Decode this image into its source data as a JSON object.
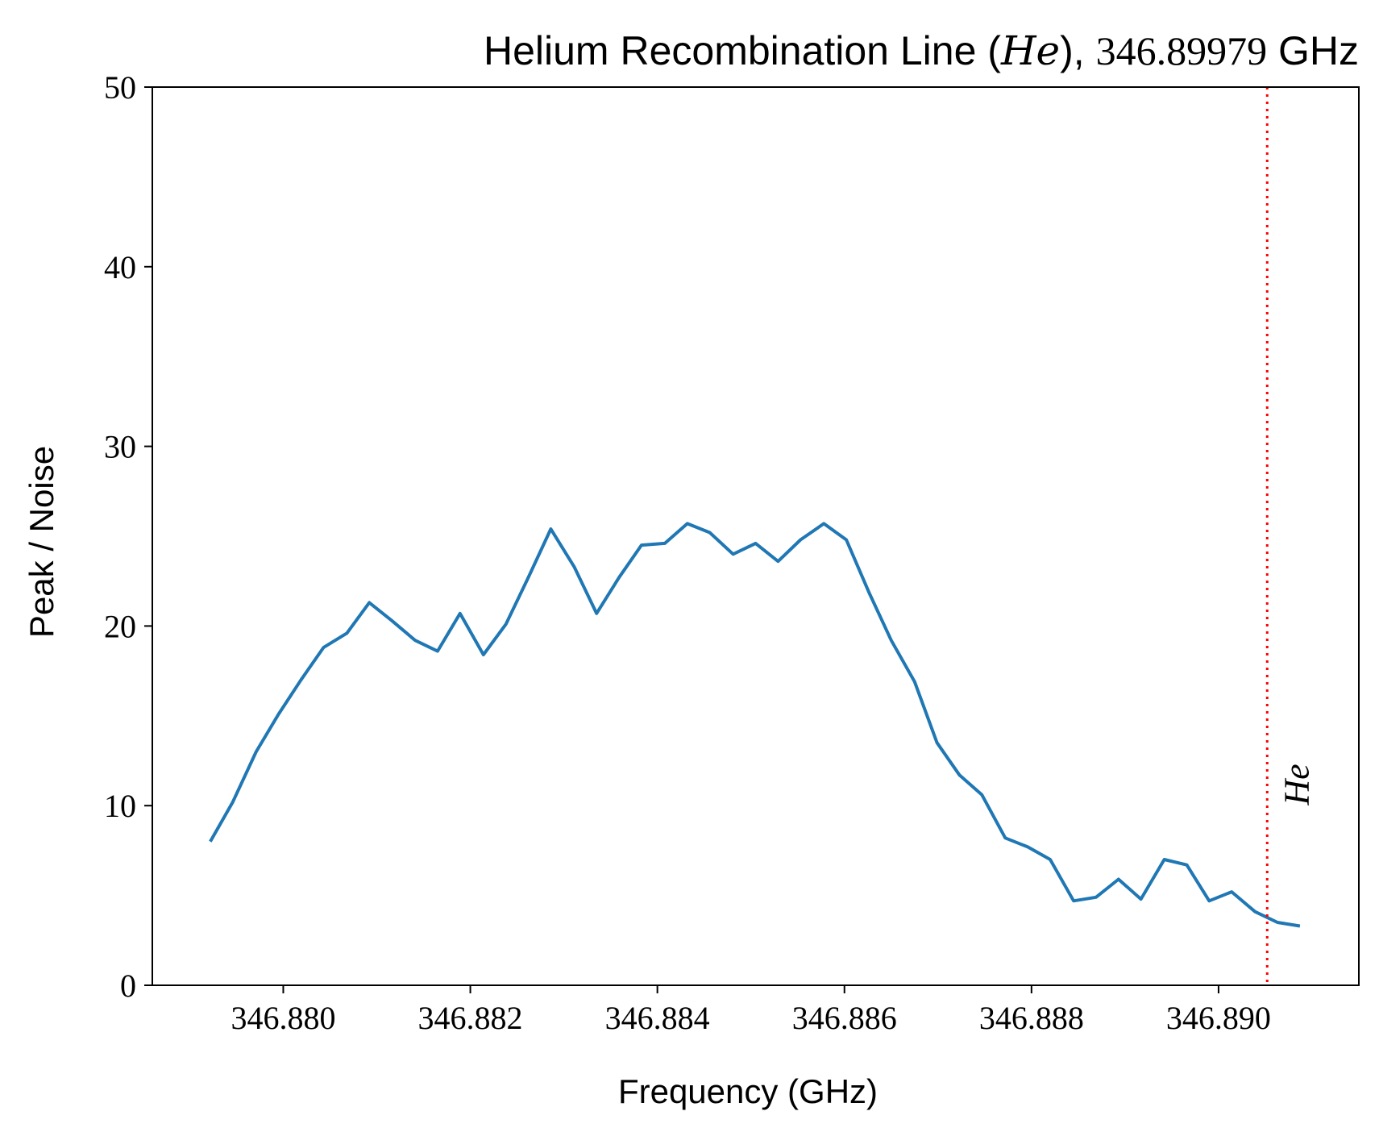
{
  "chart_data": {
    "type": "line",
    "title_parts": {
      "prefix": "Helium Recombination Line (",
      "symbol": "He",
      "middle": "), ",
      "frequency": "346.89979",
      "suffix": " GHz"
    },
    "xlabel": "Frequency (GHz)",
    "ylabel": "Peak / Noise",
    "xlim": [
      346.8786,
      346.8915
    ],
    "ylim": [
      0,
      50
    ],
    "xticks": [
      346.88,
      346.882,
      346.884,
      346.886,
      346.888,
      346.89
    ],
    "xtick_labels": [
      "346.880",
      "346.882",
      "346.884",
      "346.886",
      "346.888",
      "346.890"
    ],
    "yticks": [
      0,
      10,
      20,
      30,
      40,
      50
    ],
    "ytick_labels": [
      "0",
      "10",
      "20",
      "30",
      "40",
      "50"
    ],
    "series": [
      {
        "name": "Peak / Noise",
        "color": "#1f77b4",
        "x": [
          346.87922,
          346.87946,
          346.87971,
          346.87995,
          346.88019,
          346.88043,
          346.88068,
          346.88092,
          346.88116,
          346.88141,
          346.88165,
          346.88189,
          346.88214,
          346.88238,
          346.88262,
          346.88286,
          346.88311,
          346.88335,
          346.88359,
          346.88383,
          346.88408,
          346.88432,
          346.88456,
          346.88481,
          346.88505,
          346.88529,
          346.88553,
          346.88578,
          346.88602,
          346.88626,
          346.8865,
          346.88675,
          346.88699,
          346.88723,
          346.88747,
          346.88772,
          346.88796,
          346.8882,
          346.88845,
          346.88869,
          346.88893,
          346.88917,
          346.88942,
          346.88966,
          346.8899,
          346.89014,
          346.89039,
          346.89063,
          346.89087
        ],
        "y": [
          8.0,
          10.2,
          13.0,
          15.1,
          17.0,
          18.8,
          19.6,
          21.3,
          20.3,
          19.2,
          18.6,
          20.7,
          18.4,
          20.1,
          22.7,
          25.4,
          23.3,
          20.7,
          22.7,
          24.5,
          24.6,
          25.7,
          25.2,
          24.0,
          24.6,
          23.6,
          24.8,
          25.7,
          24.8,
          21.9,
          19.2,
          16.9,
          13.5,
          11.7,
          10.6,
          8.2,
          7.7,
          7.0,
          4.7,
          4.9,
          5.9,
          4.8,
          7.0,
          6.7,
          4.7,
          5.2,
          4.1,
          3.5,
          3.3
        ]
      }
    ],
    "vline": {
      "x": 346.89052,
      "color": "#ff0000",
      "style": "dotted",
      "label": "He"
    }
  }
}
